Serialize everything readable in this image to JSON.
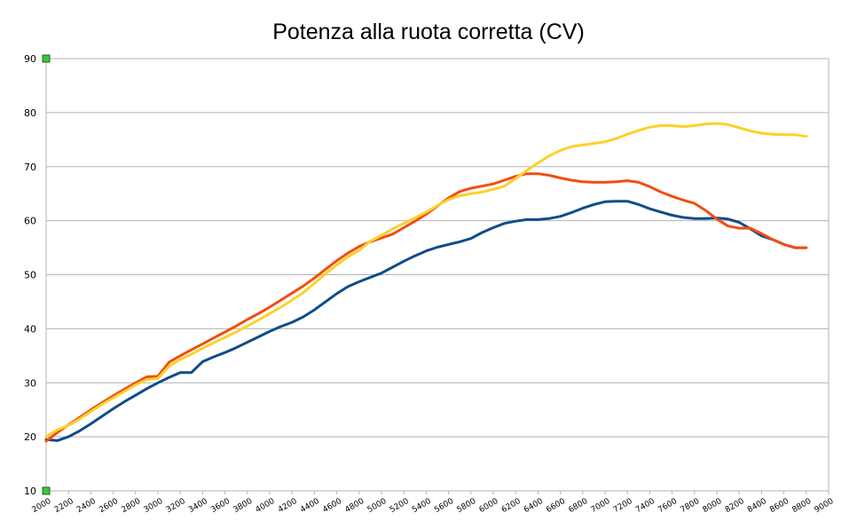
{
  "chart_data": {
    "type": "line",
    "title": "Potenza alla ruota corretta (CV)",
    "xlabel": "",
    "ylabel": "",
    "xlim": [
      2000,
      9000
    ],
    "ylim": [
      10,
      90
    ],
    "yticks": [
      10,
      20,
      30,
      40,
      50,
      60,
      70,
      80,
      90
    ],
    "xticks": [
      2000,
      2200,
      2400,
      2600,
      2800,
      3000,
      3200,
      3400,
      3600,
      3800,
      4000,
      4200,
      4400,
      4600,
      4800,
      5000,
      5200,
      5400,
      5600,
      5800,
      6000,
      6200,
      6400,
      6600,
      6800,
      7000,
      7200,
      7400,
      7600,
      7800,
      8000,
      8200,
      8400,
      8600,
      8800,
      9000
    ],
    "grid": "horizontal",
    "legend": "none",
    "series": [
      {
        "color": "#0f4c8a",
        "x": [
          2000,
          2100,
          2200,
          2300,
          2400,
          2500,
          2600,
          2700,
          2800,
          2900,
          3000,
          3100,
          3200,
          3300,
          3400,
          3500,
          3600,
          3700,
          3800,
          3900,
          4000,
          4100,
          4200,
          4300,
          4400,
          4500,
          4600,
          4700,
          4800,
          4900,
          5000,
          5100,
          5200,
          5300,
          5400,
          5500,
          5600,
          5700,
          5800,
          5900,
          6000,
          6100,
          6200,
          6300,
          6400,
          6500,
          6600,
          6700,
          6800,
          6900,
          7000,
          7100,
          7200,
          7300,
          7400,
          7500,
          7600,
          7700,
          7800,
          7900,
          8000,
          8100,
          8200,
          8300,
          8400,
          8500,
          8600,
          8700,
          8800
        ],
        "y": [
          19.5,
          19.3,
          20.0,
          21.1,
          22.4,
          23.8,
          25.2,
          26.5,
          27.7,
          28.9,
          30.0,
          31.0,
          31.9,
          31.9,
          33.9,
          34.8,
          35.6,
          36.5,
          37.5,
          38.5,
          39.5,
          40.4,
          41.2,
          42.2,
          43.5,
          45.0,
          46.5,
          47.8,
          48.7,
          49.5,
          50.3,
          51.4,
          52.5,
          53.5,
          54.4,
          55.1,
          55.6,
          56.1,
          56.7,
          57.8,
          58.7,
          59.5,
          59.9,
          60.2,
          60.2,
          60.4,
          60.8,
          61.5,
          62.3,
          63.0,
          63.5,
          63.6,
          63.6,
          63.0,
          62.2,
          61.6,
          61.0,
          60.6,
          60.4,
          60.4,
          60.5,
          60.3,
          59.7,
          58.5,
          57.2,
          56.5,
          55.6,
          55.0,
          55.0
        ]
      },
      {
        "color": "#f04e12",
        "x": [
          2000,
          2100,
          2200,
          2300,
          2400,
          2500,
          2600,
          2700,
          2800,
          2900,
          3000,
          3100,
          3200,
          3300,
          3400,
          3500,
          3600,
          3700,
          3800,
          3900,
          4000,
          4100,
          4200,
          4300,
          4400,
          4500,
          4600,
          4700,
          4800,
          4900,
          5000,
          5100,
          5200,
          5300,
          5400,
          5500,
          5600,
          5700,
          5800,
          5900,
          6000,
          6100,
          6200,
          6300,
          6400,
          6500,
          6600,
          6700,
          6800,
          6900,
          7000,
          7100,
          7200,
          7300,
          7400,
          7500,
          7600,
          7700,
          7800,
          7900,
          8000,
          8100,
          8200,
          8300,
          8400,
          8500,
          8600,
          8700,
          8800
        ],
        "y": [
          19.2,
          20.8,
          22.2,
          23.6,
          25.0,
          26.3,
          27.6,
          28.8,
          30.0,
          31.1,
          31.2,
          33.8,
          35.0,
          36.1,
          37.2,
          38.3,
          39.4,
          40.5,
          41.7,
          42.8,
          44.0,
          45.3,
          46.6,
          47.9,
          49.4,
          51.0,
          52.6,
          54.0,
          55.2,
          56.1,
          56.8,
          57.5,
          58.7,
          59.9,
          61.2,
          62.7,
          64.2,
          65.4,
          66.0,
          66.4,
          66.8,
          67.5,
          68.2,
          68.7,
          68.7,
          68.4,
          67.9,
          67.5,
          67.2,
          67.1,
          67.1,
          67.2,
          67.4,
          67.1,
          66.3,
          65.3,
          64.5,
          63.8,
          63.2,
          61.9,
          60.3,
          59.0,
          58.6,
          58.6,
          57.6,
          56.5,
          55.6,
          55.0,
          55.0
        ]
      },
      {
        "color": "#fad22a",
        "x": [
          2000,
          2100,
          2200,
          2300,
          2400,
          2500,
          2600,
          2700,
          2800,
          2900,
          3000,
          3100,
          3200,
          3300,
          3400,
          3500,
          3600,
          3700,
          3800,
          3900,
          4000,
          4100,
          4200,
          4300,
          4400,
          4500,
          4600,
          4700,
          4800,
          4900,
          5000,
          5100,
          5200,
          5300,
          5400,
          5500,
          5600,
          5700,
          5800,
          5900,
          6000,
          6100,
          6200,
          6300,
          6400,
          6500,
          6600,
          6700,
          6800,
          6900,
          7000,
          7100,
          7200,
          7300,
          7400,
          7500,
          7600,
          7700,
          7800,
          7900,
          8000,
          8100,
          8200,
          8300,
          8400,
          8500,
          8600,
          8700,
          8800
        ],
        "y": [
          20.0,
          21.3,
          22.1,
          23.3,
          24.7,
          26.0,
          27.2,
          28.4,
          29.6,
          30.6,
          30.8,
          33.1,
          34.3,
          35.3,
          36.4,
          37.4,
          38.4,
          39.4,
          40.5,
          41.6,
          42.8,
          44.0,
          45.3,
          46.7,
          48.4,
          50.2,
          51.8,
          53.3,
          54.5,
          56.2,
          57.3,
          58.5,
          59.5,
          60.5,
          61.6,
          62.8,
          63.9,
          64.6,
          65.0,
          65.3,
          65.8,
          66.4,
          67.8,
          69.3,
          70.7,
          72.0,
          73.0,
          73.7,
          74.0,
          74.3,
          74.6,
          75.2,
          76.0,
          76.7,
          77.3,
          77.6,
          77.6,
          77.4,
          77.6,
          77.9,
          78.0,
          77.8,
          77.2,
          76.6,
          76.2,
          76.0,
          75.9,
          75.9,
          75.6
        ]
      }
    ]
  }
}
